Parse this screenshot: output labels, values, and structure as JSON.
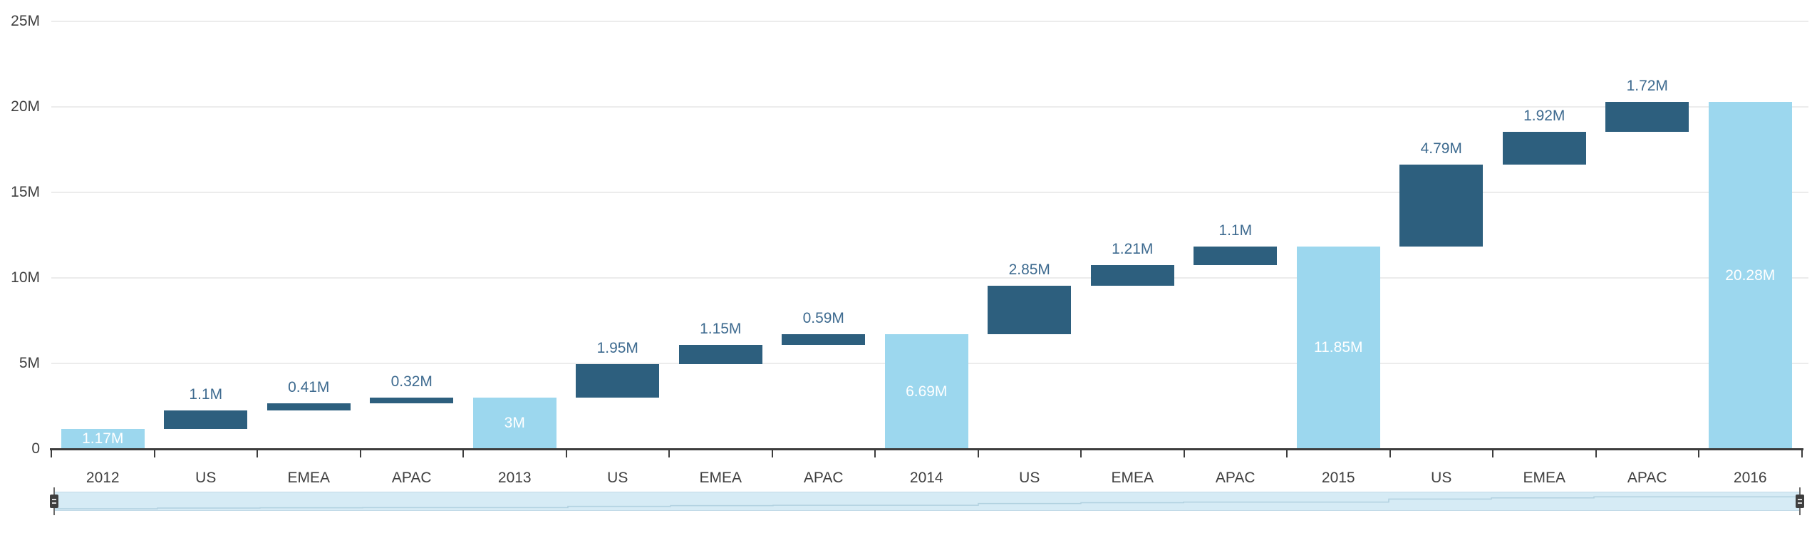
{
  "chart_data": {
    "type": "bar",
    "subtype": "waterfall",
    "title": "",
    "xlabel": "",
    "ylabel": "",
    "unit": "M",
    "ylim": [
      0,
      25
    ],
    "grid": true,
    "legend": "none",
    "y_ticks": [
      {
        "label": "0",
        "value": 0
      },
      {
        "label": "5M",
        "value": 5
      },
      {
        "label": "10M",
        "value": 10
      },
      {
        "label": "15M",
        "value": 15
      },
      {
        "label": "20M",
        "value": 20
      },
      {
        "label": "25M",
        "value": 25
      }
    ],
    "categories": [
      "2012",
      "US",
      "EMEA",
      "APAC",
      "2013",
      "US",
      "EMEA",
      "APAC",
      "2014",
      "US",
      "EMEA",
      "APAC",
      "2015",
      "US",
      "EMEA",
      "APAC",
      "2016"
    ],
    "columns": [
      {
        "category": "2012",
        "kind": "total",
        "value": 1.17,
        "start": 0,
        "end": 1.17,
        "value_label": "1.17M"
      },
      {
        "category": "US",
        "kind": "delta",
        "value": 1.1,
        "start": 1.17,
        "end": 2.27,
        "value_label": "1.1M"
      },
      {
        "category": "EMEA",
        "kind": "delta",
        "value": 0.41,
        "start": 2.27,
        "end": 2.68,
        "value_label": "0.41M"
      },
      {
        "category": "APAC",
        "kind": "delta",
        "value": 0.32,
        "start": 2.68,
        "end": 3,
        "value_label": "0.32M"
      },
      {
        "category": "2013",
        "kind": "total",
        "value": 3,
        "start": 0,
        "end": 3,
        "value_label": "3M"
      },
      {
        "category": "US",
        "kind": "delta",
        "value": 1.95,
        "start": 3,
        "end": 4.95,
        "value_label": "1.95M"
      },
      {
        "category": "EMEA",
        "kind": "delta",
        "value": 1.15,
        "start": 4.95,
        "end": 6.1,
        "value_label": "1.15M"
      },
      {
        "category": "APAC",
        "kind": "delta",
        "value": 0.59,
        "start": 6.1,
        "end": 6.69,
        "value_label": "0.59M"
      },
      {
        "category": "2014",
        "kind": "total",
        "value": 6.69,
        "start": 0,
        "end": 6.69,
        "value_label": "6.69M"
      },
      {
        "category": "US",
        "kind": "delta",
        "value": 2.85,
        "start": 6.69,
        "end": 9.54,
        "value_label": "2.85M"
      },
      {
        "category": "EMEA",
        "kind": "delta",
        "value": 1.21,
        "start": 9.54,
        "end": 10.75,
        "value_label": "1.21M"
      },
      {
        "category": "APAC",
        "kind": "delta",
        "value": 1.1,
        "start": 10.75,
        "end": 11.85,
        "value_label": "1.1M"
      },
      {
        "category": "2015",
        "kind": "total",
        "value": 11.85,
        "start": 0,
        "end": 11.85,
        "value_label": "11.85M"
      },
      {
        "category": "US",
        "kind": "delta",
        "value": 4.79,
        "start": 11.85,
        "end": 16.64,
        "value_label": "4.79M"
      },
      {
        "category": "EMEA",
        "kind": "delta",
        "value": 1.92,
        "start": 16.64,
        "end": 18.56,
        "value_label": "1.92M"
      },
      {
        "category": "APAC",
        "kind": "delta",
        "value": 1.72,
        "start": 18.56,
        "end": 20.28,
        "value_label": "1.72M"
      },
      {
        "category": "2016",
        "kind": "total",
        "value": 20.28,
        "start": 0,
        "end": 20.28,
        "value_label": "20.28M"
      }
    ],
    "colors": {
      "total_bar": "#9cd7ee",
      "delta_bar": "#2d5f7e",
      "total_bar_label": "#ffffff",
      "delta_value_label": "#3d6a8f",
      "axis_text": "#3f3f3f",
      "axis_line": "#3d3d3d",
      "gridline": "#ececec"
    }
  },
  "navigator": {
    "type": "range-scrollbar",
    "preview": "waterfall-step-outline",
    "colors": {
      "track_fill": "#d6ebf5",
      "track_border": "#9ab9cd",
      "preview_stroke": "#93bccd",
      "handle_line": "#6b6b6b",
      "grip_fill": "#3f3f3f",
      "grip_lines": "#dcdcdc"
    }
  }
}
